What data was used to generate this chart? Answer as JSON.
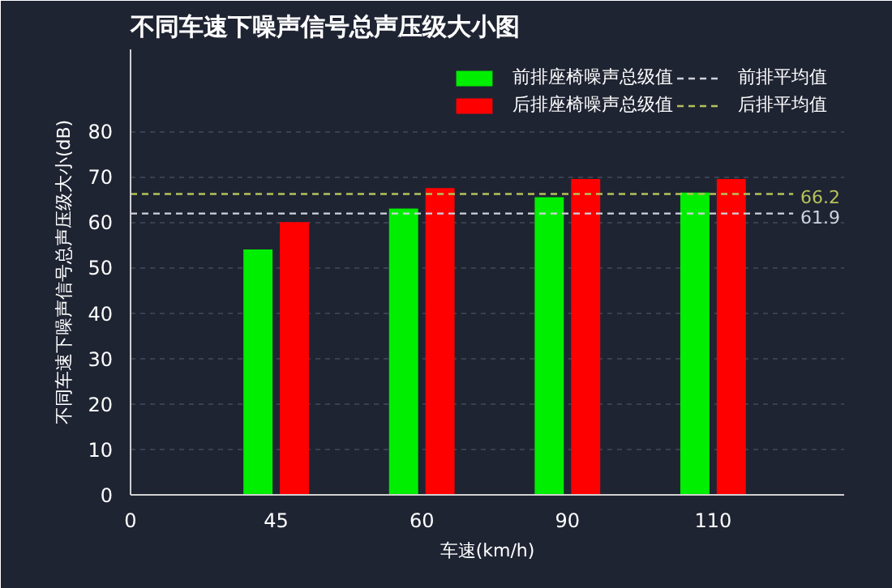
{
  "chart_data": {
    "type": "bar",
    "title": "不同车速下噪声信号总声压级大小图",
    "xlabel": "车速(km/h)",
    "ylabel": "不同车速下噪声信号总声压级大小(dB)",
    "categories": [
      "0",
      "45",
      "60",
      "90",
      "110"
    ],
    "series": [
      {
        "name": "前排座椅噪声总级值",
        "color": "#00ee00",
        "values": [
          null,
          54,
          63,
          65.5,
          66.5
        ]
      },
      {
        "name": "后排座椅噪声总级值",
        "color": "#ff0000",
        "values": [
          null,
          60,
          67.5,
          69.5,
          69.5
        ]
      }
    ],
    "annotations": [
      "61.9",
      "66.2"
    ],
    "ylim": [
      0,
      98
    ],
    "yticks": [
      0,
      10,
      20,
      30,
      40,
      50,
      60,
      70,
      80
    ],
    "grid": "y",
    "legend": "top right",
    "ref_lines": [
      {
        "axis": "y",
        "value": 61.9,
        "label": "前排平均值",
        "color": "#cfd3dc",
        "line_style": "dashed"
      },
      {
        "axis": "y",
        "value": 66.2,
        "label": "后排平均值",
        "color": "#b5c25a",
        "line_style": "dashed"
      }
    ]
  }
}
